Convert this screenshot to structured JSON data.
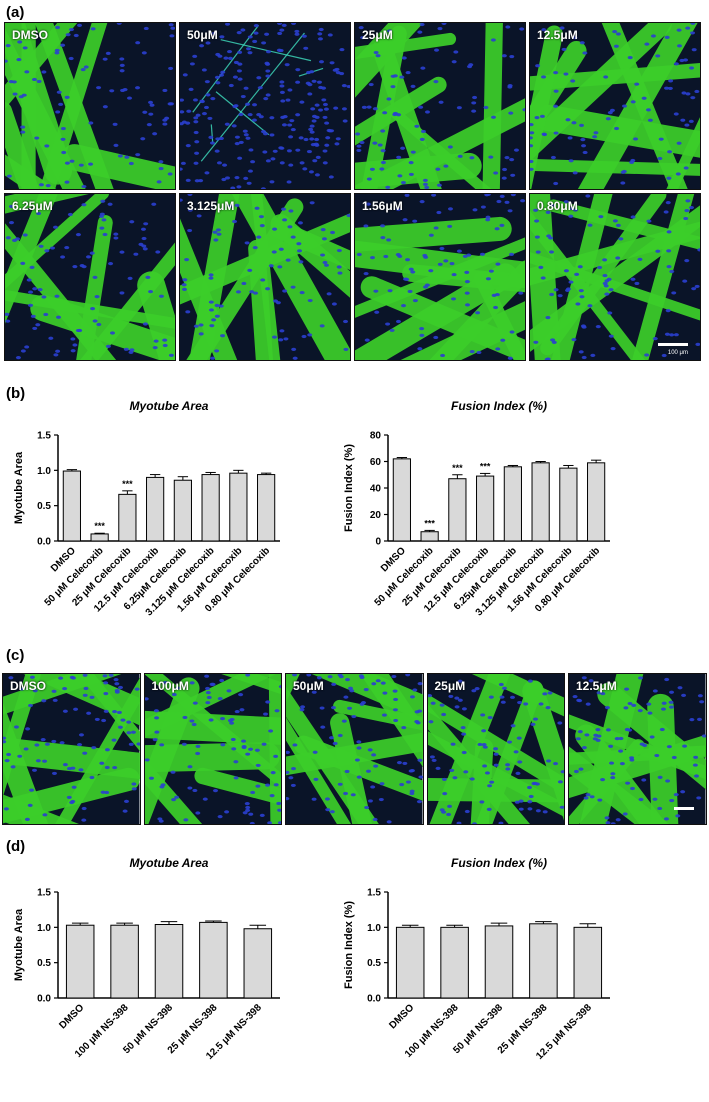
{
  "panels": {
    "a": {
      "label": "(a)",
      "images": [
        "DMSO",
        "50μM",
        "25μM",
        "12.5μM",
        "6.25μM",
        "3.125μM",
        "1.56μM",
        "0.80μM"
      ],
      "scalebar": "100 μm"
    },
    "b": {
      "label": "(b)"
    },
    "c": {
      "label": "(c)",
      "images": [
        "DMSO",
        "100μM",
        "50μM",
        "25μM",
        "12.5μM"
      ]
    },
    "d": {
      "label": "(d)"
    }
  },
  "colors": {
    "bar_fill": "#d9d9d9",
    "bar_stroke": "#000000",
    "myotube_green": "#3ccf2a",
    "nuclei_blue": "#2a3fd0",
    "background_navy": "#0a1428"
  },
  "chart_data": [
    {
      "type": "bar",
      "title": "Myotube Area",
      "ylabel": "Myotube Area",
      "categories": [
        "DMSO",
        "50 μM Celecoxib",
        "25 μM Celecoxib",
        "12.5 μM Celecoxib",
        "6.25μM Celecoxib",
        "3.125 μM Celecoxib",
        "1.56 μM Celecoxib",
        "0.80 μM Celecoxib"
      ],
      "values": [
        0.99,
        0.1,
        0.66,
        0.9,
        0.86,
        0.94,
        0.96,
        0.94
      ],
      "errors": [
        0.02,
        0.01,
        0.05,
        0.04,
        0.05,
        0.03,
        0.04,
        0.02
      ],
      "significance": [
        "",
        "***",
        "***",
        "",
        "",
        "",
        "",
        ""
      ],
      "ylim": [
        0,
        1.5
      ],
      "yticks": [
        "0.0",
        "0.5",
        "1.0",
        "1.5"
      ]
    },
    {
      "type": "bar",
      "title": "Fusion Index (%)",
      "ylabel": "Fusion Index (%)",
      "categories": [
        "DMSO",
        "50 μM Celecoxib",
        "25 μM Celecoxib",
        "12.5 μM Celecoxib",
        "6.25μM Celecoxib",
        "3.125 μM Celecoxib",
        "1.56 μM Celecoxib",
        "0.80 μM Celecoxib"
      ],
      "values": [
        62,
        7,
        47,
        49,
        56,
        59,
        55,
        59
      ],
      "errors": [
        1,
        1,
        3,
        2,
        1,
        1,
        2,
        2
      ],
      "significance": [
        "",
        "***",
        "***",
        "***",
        "",
        "",
        "",
        ""
      ],
      "ylim": [
        0,
        80
      ],
      "yticks": [
        "0",
        "20",
        "40",
        "60",
        "80"
      ]
    },
    {
      "type": "bar",
      "title": "Myotube Area",
      "ylabel": "Myotube Area",
      "categories": [
        "DMSO",
        "100 μM NS-398",
        "50 μM NS-398",
        "25 μM NS-398",
        "12.5 μM NS-398"
      ],
      "values": [
        1.03,
        1.03,
        1.04,
        1.07,
        0.98
      ],
      "errors": [
        0.03,
        0.03,
        0.04,
        0.02,
        0.05
      ],
      "significance": [
        "",
        "",
        "",
        "",
        ""
      ],
      "ylim": [
        0,
        1.5
      ],
      "yticks": [
        "0.0",
        "0.5",
        "1.0",
        "1.5"
      ]
    },
    {
      "type": "bar",
      "title": "Fusion Index (%)",
      "ylabel": "Fusion Index (%)",
      "categories": [
        "DMSO",
        "100 μM NS-398",
        "50 μM NS-398",
        "25 μM NS-398",
        "12.5 μM NS-398"
      ],
      "values": [
        1.0,
        1.0,
        1.02,
        1.05,
        1.0
      ],
      "errors": [
        0.03,
        0.03,
        0.04,
        0.03,
        0.05
      ],
      "significance": [
        "",
        "",
        "",
        "",
        ""
      ],
      "ylim": [
        0,
        1.5
      ],
      "yticks": [
        "0.0",
        "0.5",
        "1.0",
        "1.5"
      ]
    }
  ]
}
